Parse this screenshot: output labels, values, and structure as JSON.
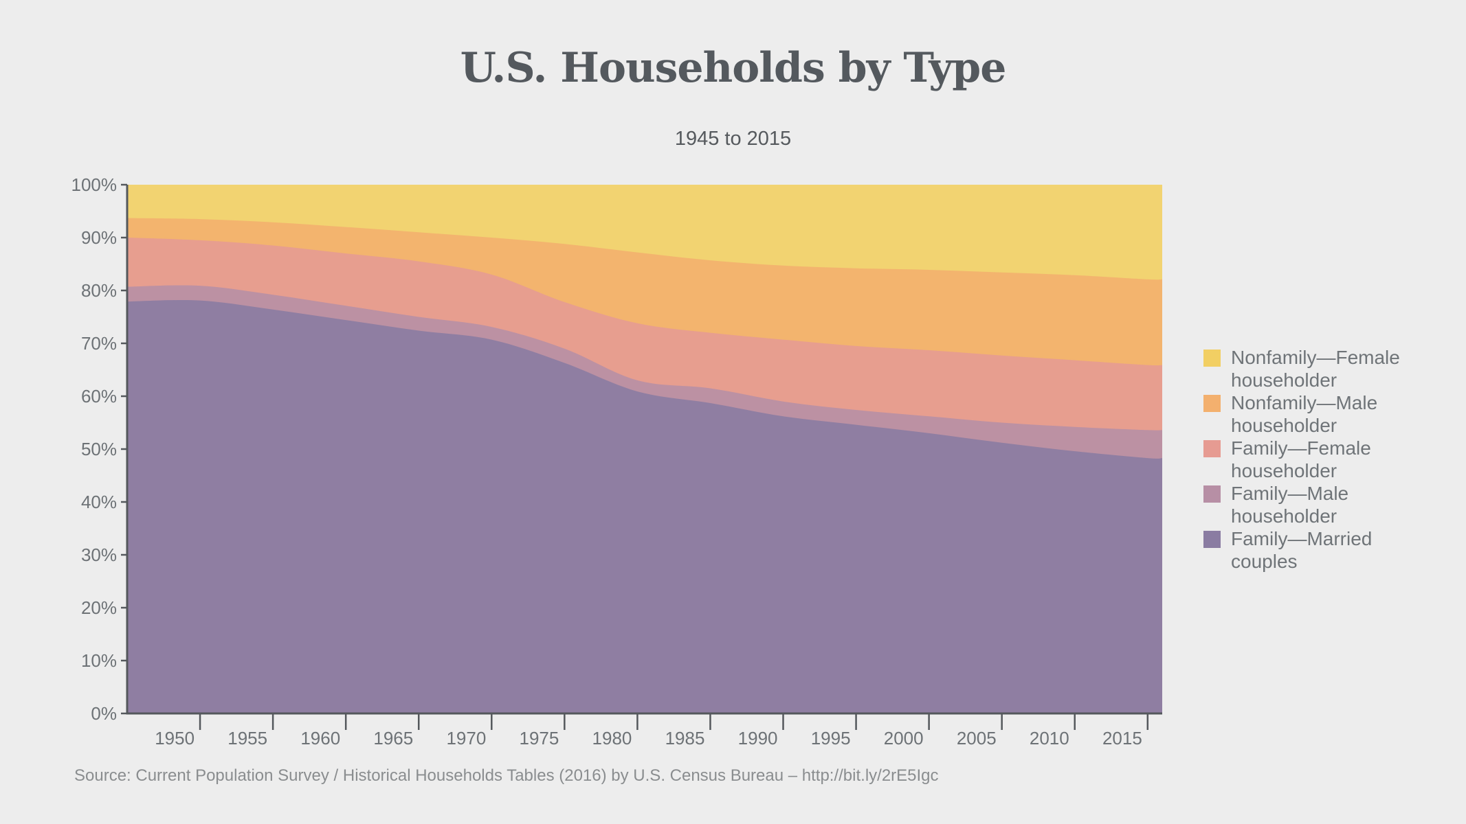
{
  "header": {
    "title": "U.S. Households by Type",
    "subtitle": "1945 to 2015"
  },
  "footer": {
    "source": "Source: Current Population Survey / Historical Households Tables (2016) by U.S. Census Bureau – http://bit.ly/2rE5Igc"
  },
  "colors": {
    "background": "#EDEDED",
    "axis": "#54585C",
    "tick_label": "#6D7276",
    "title_text": "#54595E",
    "subtitle_text": "#55595D",
    "legend_text": "#6F7478",
    "source_text": "#8A8D8F"
  },
  "chart_data": {
    "type": "area",
    "stacked": true,
    "title": "U.S. Households by Type",
    "subtitle": "1945 to 2015",
    "xlabel": "",
    "ylabel": "",
    "grid": false,
    "legend_position": "right",
    "xlim": [
      1945,
      2016
    ],
    "ylim": [
      0,
      100
    ],
    "x": [
      1945,
      1950,
      1955,
      1960,
      1965,
      1970,
      1975,
      1980,
      1985,
      1990,
      1995,
      2000,
      2005,
      2010,
      2015
    ],
    "x_tick_labels": [
      "1950",
      "1955",
      "1960",
      "1965",
      "1970",
      "1975",
      "1980",
      "1985",
      "1990",
      "1995",
      "2000",
      "2005",
      "2010",
      "2015"
    ],
    "x_tick_values": [
      1950,
      1955,
      1960,
      1965,
      1970,
      1975,
      1980,
      1985,
      1990,
      1995,
      2000,
      2005,
      2010,
      2015
    ],
    "y_tick_labels": [
      "0%",
      "10%",
      "20%",
      "30%",
      "40%",
      "50%",
      "60%",
      "70%",
      "80%",
      "90%",
      "100%"
    ],
    "y_tick_values": [
      0,
      10,
      20,
      30,
      40,
      50,
      60,
      70,
      80,
      90,
      100
    ],
    "series": [
      {
        "key": "family-married-couples",
        "name": "Family—Married couples",
        "color": "#8A7CA2",
        "values": [
          77.9,
          78.1,
          76.4,
          74.4,
          72.4,
          70.7,
          66.3,
          60.9,
          58.7,
          56.2,
          54.6,
          53.0,
          51.2,
          49.6,
          48.3
        ]
      },
      {
        "key": "family-male-householder",
        "name": "Family—Male householder",
        "color": "#B78FA5",
        "values": [
          2.8,
          2.8,
          2.8,
          2.7,
          2.6,
          2.4,
          2.7,
          2.1,
          2.8,
          2.8,
          2.8,
          3.2,
          3.8,
          4.6,
          5.3
        ]
      },
      {
        "key": "family-female-householder",
        "name": "Family—Female householder",
        "color": "#E69B92",
        "values": [
          9.3,
          8.6,
          9.3,
          9.9,
          10.5,
          9.9,
          8.8,
          10.8,
          10.5,
          11.7,
          12.1,
          12.5,
          12.7,
          12.6,
          12.3
        ]
      },
      {
        "key": "nonfamily-male-householder",
        "name": "Nonfamily—Male householder",
        "color": "#F3B06E",
        "values": [
          3.7,
          4.0,
          4.4,
          5.0,
          5.5,
          7.0,
          11.0,
          13.4,
          13.7,
          14.0,
          14.7,
          15.2,
          15.7,
          16.1,
          16.2
        ]
      },
      {
        "key": "nonfamily-female-householder",
        "name": "Nonfamily—Female householder",
        "color": "#F2CF63",
        "values": [
          6.3,
          6.5,
          7.1,
          8.0,
          9.0,
          10.0,
          11.2,
          12.8,
          14.3,
          15.3,
          15.8,
          16.1,
          16.6,
          17.1,
          17.9
        ]
      }
    ]
  }
}
